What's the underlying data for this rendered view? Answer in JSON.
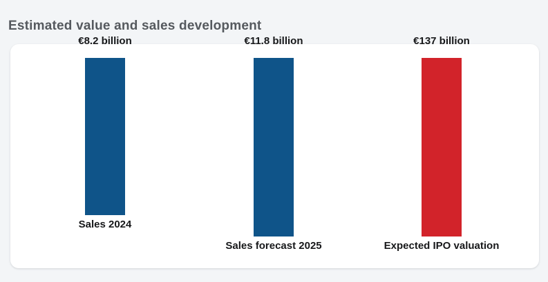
{
  "page": {
    "background_color": "#f3f5f7",
    "card_color": "#ffffff"
  },
  "header": {
    "title": "Estimated value and sales development"
  },
  "chart_data": {
    "type": "bar",
    "title": "Estimated value and sales development",
    "orientation": "vertical-hanging",
    "categories": [
      "Sales 2024",
      "Sales forecast 2025",
      "Expected IPO valuation"
    ],
    "values": [
      8.2,
      11.8,
      137
    ],
    "value_labels": [
      "€8.2 billion",
      "€11.8 billion",
      "€137 billion"
    ],
    "unit": "€ billion",
    "bar_colors": [
      "#0f5489",
      "#0f5489",
      "#d2232a"
    ],
    "accent_blue": "#0f5489",
    "accent_red": "#d2232a",
    "xlabel": "",
    "ylabel": "",
    "legend": "none",
    "axes_visible": false,
    "grid": false,
    "note": "bars hang from a common top edge; bar length is capped so €11.8B and €137B bars render equal length"
  }
}
